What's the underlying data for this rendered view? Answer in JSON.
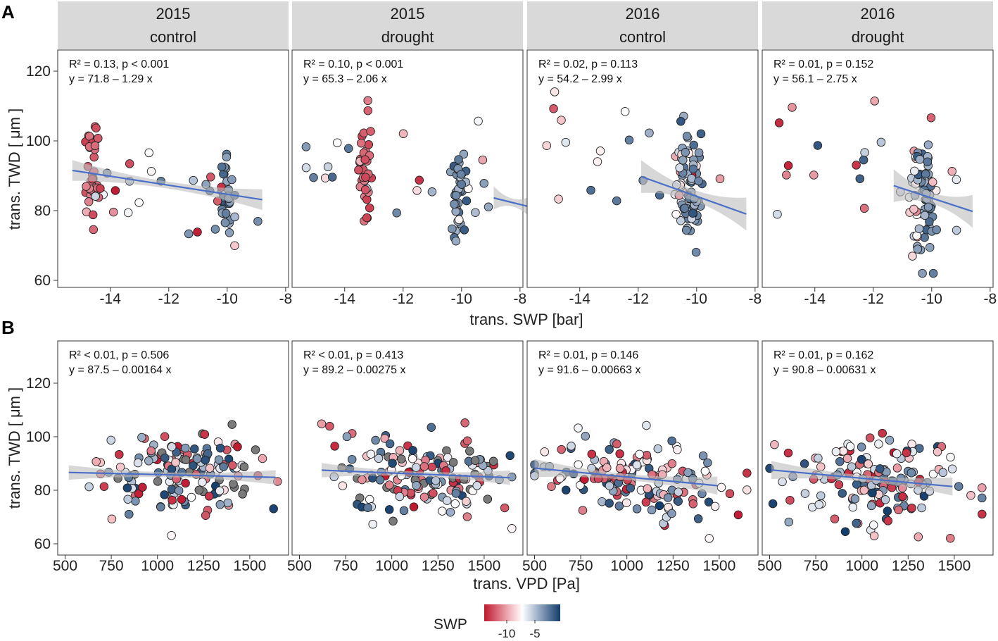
{
  "chart_data": [
    {
      "section": "A",
      "type": "scatter",
      "xlabel": "trans. SWP [bar]",
      "ylabel": "trans. TWD [ μm ]",
      "xlim": [
        -15.8,
        -7.9
      ],
      "ylim": [
        57,
        127
      ],
      "xticks": [
        -14,
        -12,
        -10,
        -8
      ],
      "yticks": [
        60,
        80,
        100,
        120
      ],
      "panels": [
        {
          "strip": [
            "2015",
            "control"
          ],
          "r2": "R² = 0.13, p < 0.001",
          "eq": "y = 71.8 – 1.29 x",
          "intercept": 71.8,
          "slope": -1.29,
          "xrange": [
            -15.3,
            -8.8
          ],
          "se": 2.2,
          "cluster_x": [
            -14.6,
            -10.0
          ]
        },
        {
          "strip": [
            "2015",
            "drought"
          ],
          "r2": "R² = 0.10, p < 0.001",
          "eq": "y = 65.3 – 2.06 x",
          "intercept": 65.3,
          "slope": -2.06,
          "xrange": [
            -7.6,
            -8.9
          ],
          "se": 2.5,
          "cluster_x": [
            -13.3,
            -10.1
          ]
        },
        {
          "strip": [
            "2016",
            "control"
          ],
          "r2": "R² = 0.02, p = 0.113",
          "eq": "y = 54.2 – 2.99 x",
          "intercept": 54.2,
          "slope": -2.99,
          "xrange": [
            -11.9,
            -8.3
          ],
          "se": 3.5,
          "cluster_x": [
            -10.5,
            -10.1
          ]
        },
        {
          "strip": [
            "2016",
            "drought"
          ],
          "r2": "R² = 0.01, p = 0.152",
          "eq": "y = 56.1 – 2.75 x",
          "intercept": 56.1,
          "slope": -2.75,
          "xrange": [
            -11.3,
            -8.6
          ],
          "se": 3.5,
          "cluster_x": [
            -10.5,
            -10.1
          ]
        }
      ]
    },
    {
      "section": "B",
      "type": "scatter",
      "xlabel": "trans. VPD [Pa]",
      "ylabel": "trans. TWD [ μm ]",
      "xlim": [
        460,
        1710
      ],
      "ylim": [
        57,
        127
      ],
      "xticks": [
        500,
        750,
        1000,
        1250,
        1500
      ],
      "yticks": [
        60,
        80,
        100,
        120
      ],
      "panels": [
        {
          "strip": [
            "2015",
            "control"
          ],
          "r2": "R² < 0.01, p = 0.506",
          "eq": "y = 87.5 – 0.00164 x",
          "intercept": 87.5,
          "slope": -0.00164,
          "xrange": [
            520,
            1640
          ],
          "se": 2.0,
          "center": 1150
        },
        {
          "strip": [
            "2015",
            "drought"
          ],
          "r2": "R² < 0.01, p = 0.413",
          "eq": "y = 89.2 – 0.00275 x",
          "intercept": 89.2,
          "slope": -0.00275,
          "xrange": [
            620,
            1640
          ],
          "se": 2.0,
          "center": 1150
        },
        {
          "strip": [
            "2016",
            "control"
          ],
          "r2": "R² = 0.01, p = 0.146",
          "eq": "y = 91.6 – 0.00663 x",
          "intercept": 91.6,
          "slope": -0.00663,
          "xrange": [
            500,
            1490
          ],
          "se": 2.5,
          "center": 1050
        },
        {
          "strip": [
            "2016",
            "drought"
          ],
          "r2": "R² = 0.01, p = 0.162",
          "eq": "y = 90.8 – 0.00631 x",
          "intercept": 90.8,
          "slope": -0.00631,
          "xrange": [
            510,
            1490
          ],
          "se": 2.5,
          "center": 1050
        }
      ]
    }
  ],
  "labels": {
    "section_a": "A",
    "section_b": "B"
  },
  "legend": {
    "title": "SWP",
    "ticks": [
      "-10",
      "-5"
    ],
    "colors": [
      "#c0182f",
      "#ffffff",
      "#123c6b"
    ]
  },
  "colors": {
    "line": "#4a6fc8",
    "ribbon": "#bdbdbd",
    "strip": "#d9d9d9"
  }
}
